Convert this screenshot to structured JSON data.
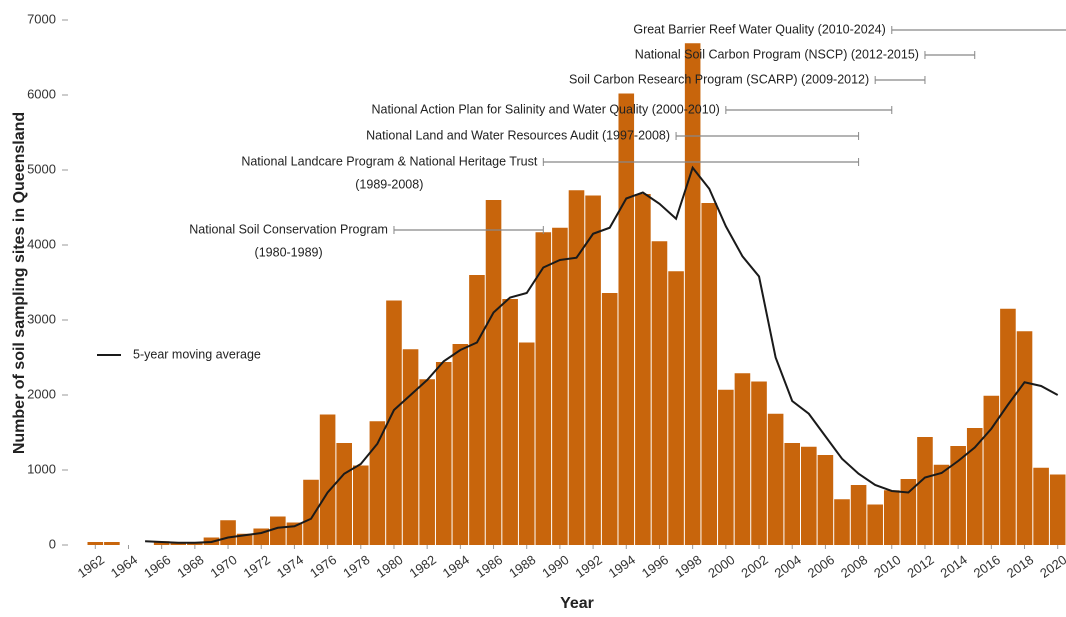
{
  "chart_data": {
    "type": "bar",
    "y_label": "Number of soil sampling sites in Queensland",
    "x_label": "Year",
    "x": [
      1962,
      1963,
      1964,
      1965,
      1966,
      1967,
      1968,
      1969,
      1970,
      1971,
      1972,
      1973,
      1974,
      1975,
      1976,
      1977,
      1978,
      1979,
      1980,
      1981,
      1982,
      1983,
      1984,
      1985,
      1986,
      1987,
      1988,
      1989,
      1990,
      1991,
      1992,
      1993,
      1994,
      1995,
      1996,
      1997,
      1998,
      1999,
      2000,
      2001,
      2002,
      2003,
      2004,
      2005,
      2006,
      2007,
      2008,
      2009,
      2010,
      2011,
      2012,
      2013,
      2014,
      2015,
      2016,
      2017,
      2018,
      2019,
      2020
    ],
    "series": [
      {
        "type": "bar",
        "color": "#c8650c",
        "values": [
          40,
          40,
          0,
          0,
          50,
          30,
          30,
          100,
          330,
          150,
          220,
          380,
          300,
          870,
          1740,
          1360,
          1060,
          1650,
          3260,
          2610,
          2210,
          2440,
          2680,
          3600,
          4600,
          3280,
          2700,
          4170,
          4230,
          4730,
          4660,
          3360,
          6020,
          4680,
          4050,
          3650,
          6690,
          4560,
          2070,
          2290,
          2180,
          1750,
          1360,
          1310,
          1200,
          610,
          800,
          540,
          730,
          880,
          1440,
          1070,
          1320,
          1560,
          1990,
          3150,
          2850,
          1030,
          940
        ]
      },
      {
        "type": "line",
        "name": "5-year moving average",
        "color": "#1a1a1a",
        "values": [
          null,
          null,
          null,
          50,
          40,
          30,
          30,
          40,
          100,
          130,
          160,
          230,
          250,
          350,
          700,
          950,
          1080,
          1350,
          1800,
          2000,
          2200,
          2450,
          2600,
          2700,
          3100,
          3300,
          3360,
          3700,
          3800,
          3830,
          4150,
          4230,
          4620,
          4700,
          4550,
          4350,
          5030,
          4750,
          4250,
          3850,
          3580,
          2500,
          1920,
          1750,
          1450,
          1150,
          950,
          800,
          720,
          700,
          900,
          960,
          1120,
          1300,
          1550,
          1870,
          2170,
          2120,
          2000
        ]
      }
    ],
    "xlim": [
      1961.5,
      2020.5
    ],
    "xticks": [
      1962,
      1964,
      1966,
      1968,
      1970,
      1972,
      1974,
      1976,
      1978,
      1980,
      1982,
      1984,
      1986,
      1988,
      1990,
      1992,
      1994,
      1996,
      1998,
      2000,
      2002,
      2004,
      2006,
      2008,
      2010,
      2012,
      2014,
      2016,
      2018,
      2020
    ],
    "ylim": [
      0,
      7000
    ],
    "yticks": [
      0,
      1000,
      2000,
      3000,
      4000,
      5000,
      6000,
      7000
    ],
    "legend": "left",
    "annotations": [
      {
        "text": [
          "Great Barrier Reef Water Quality  (2010-2024)"
        ],
        "start": 2010,
        "end": 2024
      },
      {
        "text": [
          "National Soil Carbon Program (NSCP) (2012-2015)"
        ],
        "start": 2012,
        "end": 2015
      },
      {
        "text": [
          "Soil Carbon Research Program (SCARP) (2009-2012)"
        ],
        "start": 2009,
        "end": 2012
      },
      {
        "text": [
          "National Action Plan for Salinity and Water Quality (2000-2010)"
        ],
        "start": 2000,
        "end": 2010
      },
      {
        "text": [
          "National Land and Water Resources Audit (1997-2008)"
        ],
        "start": 1997,
        "end": 2008
      },
      {
        "text": [
          "National Landcare Program & National Heritage Trust",
          "(1989-2008)"
        ],
        "start": 1989,
        "end": 2008
      },
      {
        "text": [
          "National Soil Conservation Program",
          "(1980-1989)"
        ],
        "start": 1980,
        "end": 1989
      }
    ]
  }
}
